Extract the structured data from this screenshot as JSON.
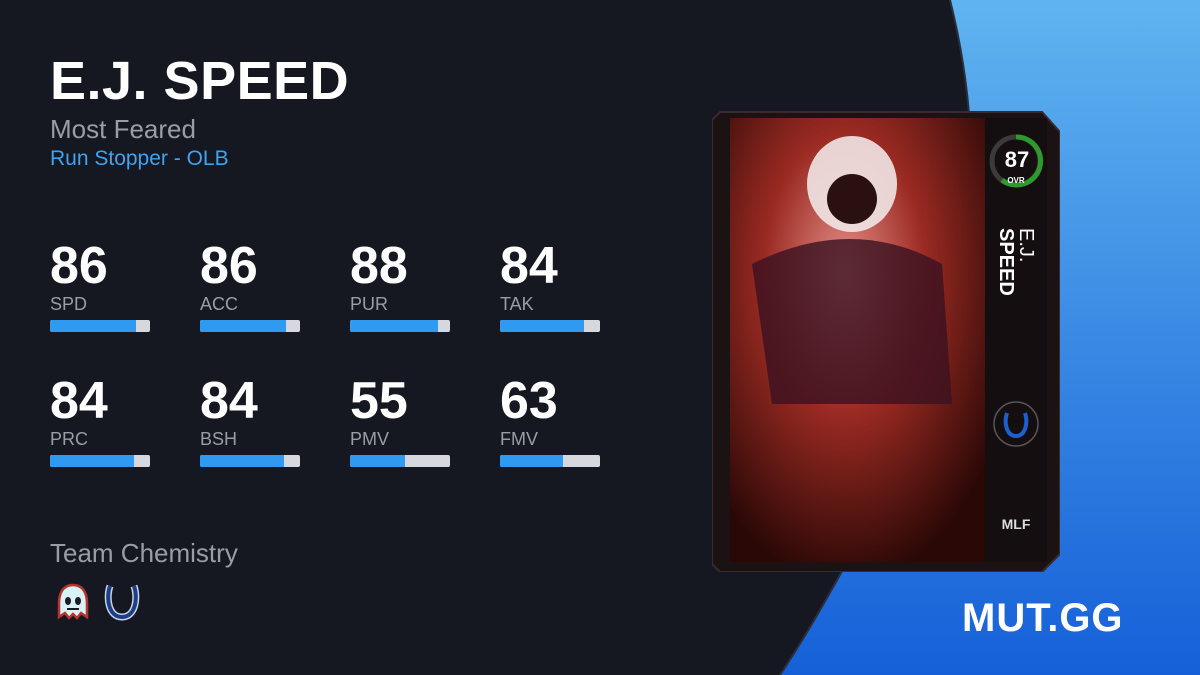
{
  "player": {
    "name": "E.J. SPEED",
    "program": "Most Feared",
    "archetype": "Run Stopper - OLB"
  },
  "stats": [
    {
      "label": "SPD",
      "value": 86
    },
    {
      "label": "ACC",
      "value": 86
    },
    {
      "label": "PUR",
      "value": 88
    },
    {
      "label": "TAK",
      "value": 84
    },
    {
      "label": "PRC",
      "value": 84
    },
    {
      "label": "BSH",
      "value": 84
    },
    {
      "label": "PMV",
      "value": 55
    },
    {
      "label": "FMV",
      "value": 63
    }
  ],
  "chemistry": {
    "title": "Team Chemistry",
    "icons": [
      "most-feared-ghost-icon",
      "colts-horseshoe-icon"
    ]
  },
  "card": {
    "ovr": "87",
    "ovr_label": "OVR",
    "first_name": "E.J.",
    "last_name": "SPEED",
    "ovr_color": "#2e9a2e"
  },
  "brand": {
    "logo": "MUT.GG"
  },
  "colors": {
    "accent": "#2f9af0",
    "background": "#161821",
    "bar_track": "#d6d8de"
  }
}
